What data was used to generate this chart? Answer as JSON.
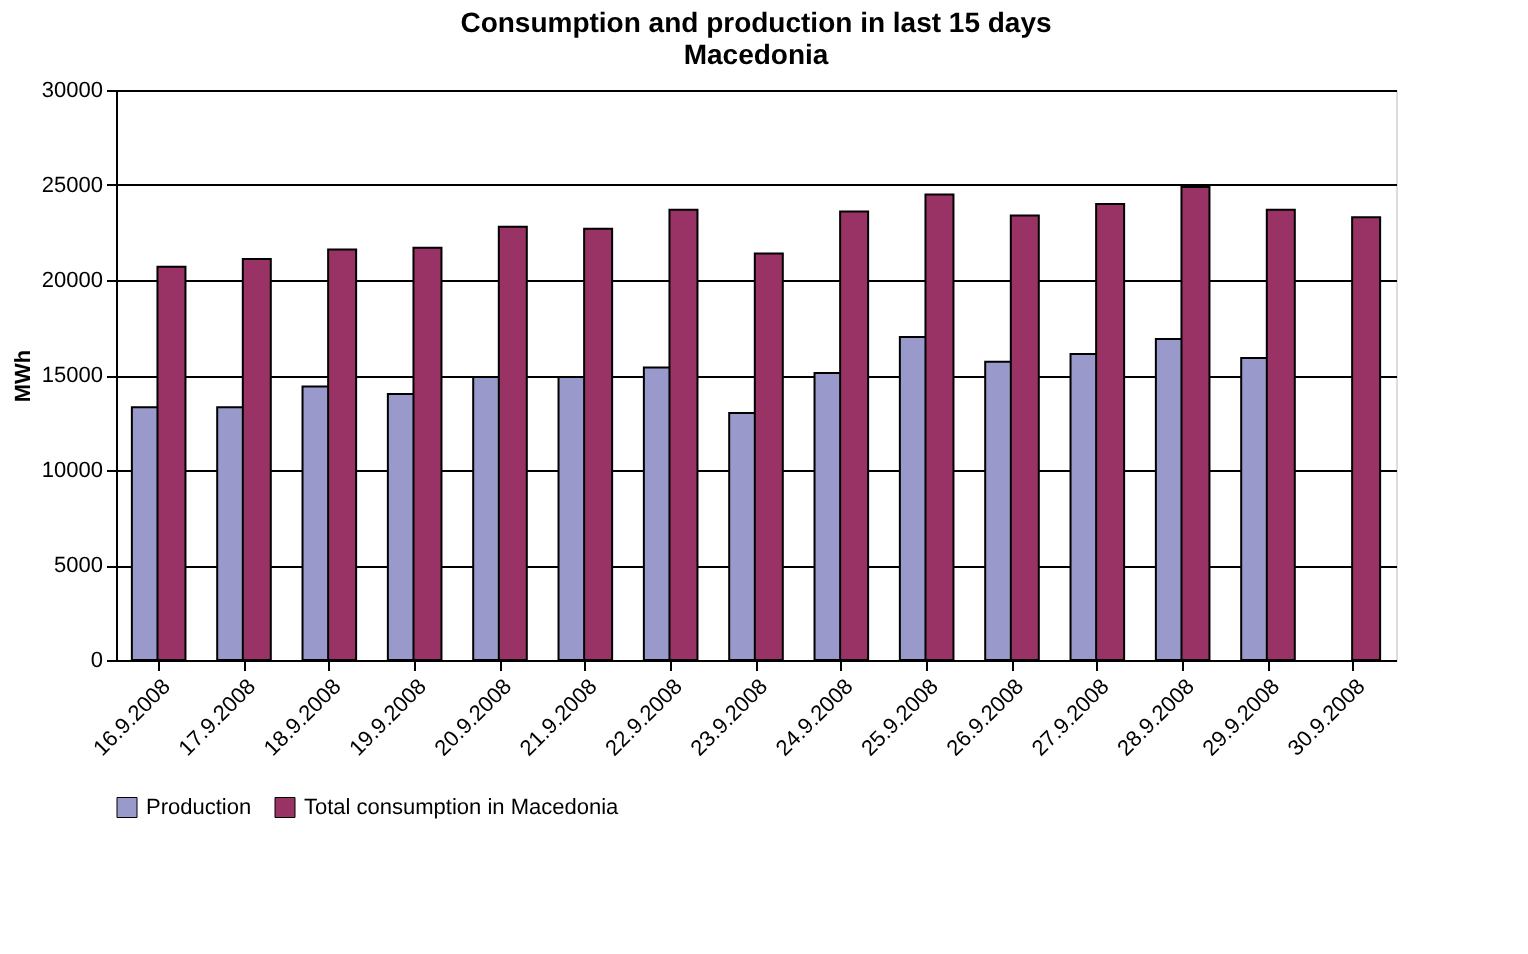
{
  "chart_data": {
    "type": "bar",
    "title": "Consumption and production in last 15 days",
    "subtitle": "Macedonia",
    "ylabel": "MWh",
    "categories": [
      "16.9.2008",
      "17.9.2008",
      "18.9.2008",
      "19.9.2008",
      "20.9.2008",
      "21.9.2008",
      "22.9.2008",
      "23.9.2008",
      "24.9.2008",
      "25.9.2008",
      "26.9.2008",
      "27.9.2008",
      "28.9.2008",
      "29.9.2008",
      "30.9.2008"
    ],
    "series": [
      {
        "name": "Production",
        "color": "#9999cc",
        "values": [
          13300,
          13300,
          14400,
          14000,
          14900,
          14900,
          15400,
          13000,
          15100,
          17000,
          15700,
          16100,
          16900,
          15900,
          null
        ]
      },
      {
        "name": "Total consumption in Macedonia",
        "color": "#993366",
        "values": [
          20700,
          21100,
          21600,
          21700,
          22800,
          22700,
          23700,
          21400,
          23600,
          24500,
          23400,
          24000,
          24900,
          23700,
          23300
        ]
      }
    ],
    "ylim": [
      0,
      30000
    ],
    "yticks": [
      0,
      5000,
      10000,
      15000,
      20000,
      25000,
      30000
    ],
    "grid": "y",
    "legend": "bottom"
  }
}
